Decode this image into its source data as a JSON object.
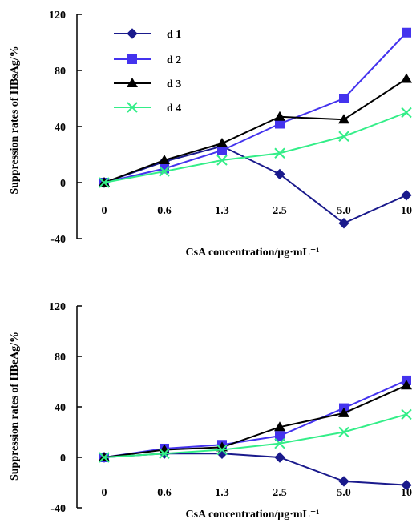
{
  "chart_data": [
    {
      "type": "line",
      "categories": [
        "0",
        "0.6",
        "1.3",
        "2.5",
        "5.0",
        "10"
      ],
      "ylabel": "Suppression rates of HBsAg/%",
      "xlabel": "CsA concentration/μg·mL⁻¹",
      "ylim": [
        -40,
        120
      ],
      "yticks": [
        "120",
        "80",
        "40",
        "0",
        "-40"
      ],
      "legend": "top-left",
      "series": [
        {
          "name": "d 1",
          "color": "#1a1a8c",
          "marker": "diamond",
          "values": [
            0,
            15,
            26,
            6,
            -29,
            -9
          ]
        },
        {
          "name": "d 2",
          "color": "#4433ee",
          "marker": "square",
          "values": [
            0,
            10,
            23,
            42,
            60,
            107
          ]
        },
        {
          "name": "d 3",
          "color": "#000000",
          "marker": "triangle",
          "values": [
            0,
            16,
            28,
            47,
            45,
            74
          ]
        },
        {
          "name": "d 4",
          "color": "#33ee88",
          "marker": "x",
          "values": [
            0,
            8,
            16,
            21,
            33,
            50
          ]
        }
      ]
    },
    {
      "type": "line",
      "categories": [
        "0",
        "0.6",
        "1.3",
        "2.5",
        "5.0",
        "10"
      ],
      "ylabel": "Suppression rates of HBeAg/%",
      "xlabel": "CsA concentration/μg·mL⁻¹",
      "ylim": [
        -40,
        120
      ],
      "yticks": [
        "120",
        "80",
        "40",
        "0",
        "-40"
      ],
      "series": [
        {
          "name": "d 1",
          "color": "#1a1a8c",
          "marker": "diamond",
          "values": [
            0,
            3,
            3,
            0,
            -19,
            -22
          ]
        },
        {
          "name": "d 2",
          "color": "#4433ee",
          "marker": "square",
          "values": [
            0,
            7,
            10,
            17,
            39,
            61
          ]
        },
        {
          "name": "d 3",
          "color": "#000000",
          "marker": "triangle",
          "values": [
            0,
            6,
            8,
            24,
            35,
            57
          ]
        },
        {
          "name": "d 4",
          "color": "#33ee88",
          "marker": "x",
          "values": [
            0,
            3,
            6,
            11,
            20,
            34
          ]
        }
      ]
    }
  ]
}
